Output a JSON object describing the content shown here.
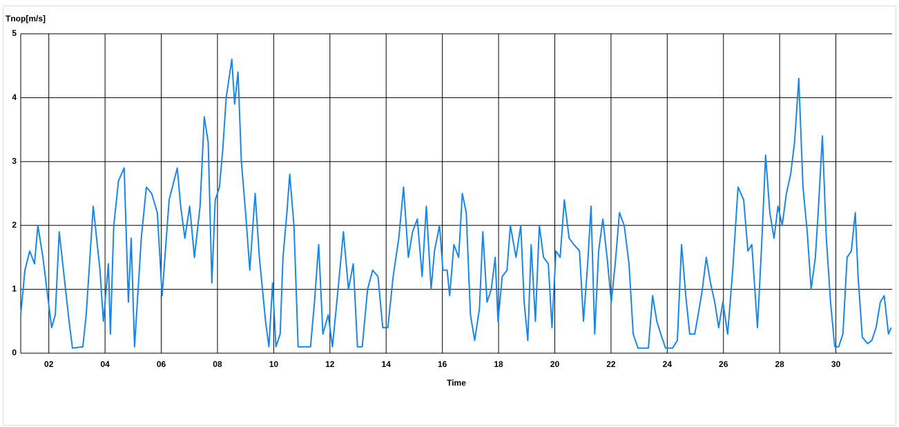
{
  "chart_data": {
    "type": "line",
    "y_label": "Tnop[m/s]",
    "x_label": "Time",
    "xlim": [
      1,
      32
    ],
    "xticks": [
      {
        "value": 2,
        "label": "02"
      },
      {
        "value": 4,
        "label": "04"
      },
      {
        "value": 6,
        "label": "06"
      },
      {
        "value": 8,
        "label": "08"
      },
      {
        "value": 10,
        "label": "10"
      },
      {
        "value": 12,
        "label": "12"
      },
      {
        "value": 14,
        "label": "14"
      },
      {
        "value": 16,
        "label": "16"
      },
      {
        "value": 18,
        "label": "18"
      },
      {
        "value": 20,
        "label": "20"
      },
      {
        "value": 22,
        "label": "22"
      },
      {
        "value": 24,
        "label": "24"
      },
      {
        "value": 26,
        "label": "26"
      },
      {
        "value": 28,
        "label": "28"
      },
      {
        "value": 30,
        "label": "30"
      }
    ],
    "ylim": [
      0,
      5
    ],
    "yticks": [
      0,
      1,
      2,
      3,
      4,
      5
    ],
    "grid": true,
    "x": [
      1.0,
      1.15,
      1.32,
      1.49,
      1.61,
      1.79,
      1.93,
      2.1,
      2.23,
      2.37,
      2.52,
      2.72,
      2.84,
      3.21,
      3.33,
      3.58,
      3.82,
      3.94,
      4.12,
      4.19,
      4.31,
      4.48,
      4.68,
      4.83,
      4.93,
      5.05,
      5.29,
      5.47,
      5.66,
      5.86,
      6.03,
      6.28,
      6.57,
      6.69,
      6.84,
      7.01,
      7.18,
      7.38,
      7.53,
      7.67,
      7.8,
      7.92,
      8.07,
      8.19,
      8.31,
      8.51,
      8.61,
      8.73,
      8.85,
      9.0,
      9.15,
      9.34,
      9.49,
      9.71,
      9.83,
      9.96,
      10.08,
      10.23,
      10.33,
      10.47,
      10.57,
      10.72,
      10.87,
      11.06,
      11.31,
      11.45,
      11.6,
      11.75,
      11.94,
      12.09,
      12.29,
      12.48,
      12.66,
      12.83,
      12.98,
      13.15,
      13.34,
      13.52,
      13.71,
      13.88,
      14.06,
      14.25,
      14.45,
      14.62,
      14.79,
      14.94,
      15.11,
      15.28,
      15.43,
      15.6,
      15.72,
      15.9,
      16.02,
      16.17,
      16.26,
      16.41,
      16.58,
      16.71,
      16.85,
      17.0,
      17.15,
      17.32,
      17.44,
      17.59,
      17.74,
      17.88,
      17.98,
      18.13,
      18.3,
      18.42,
      18.62,
      18.79,
      18.91,
      19.04,
      19.16,
      19.31,
      19.45,
      19.6,
      19.77,
      19.9,
      20.04,
      20.19,
      20.34,
      20.51,
      20.68,
      20.88,
      21.02,
      21.17,
      21.29,
      21.42,
      21.56,
      21.71,
      21.86,
      22.01,
      22.15,
      22.3,
      22.47,
      22.64,
      22.79,
      22.96,
      23.33,
      23.48,
      23.63,
      23.77,
      23.94,
      24.19,
      24.36,
      24.51,
      24.66,
      24.8,
      24.98,
      25.1,
      25.25,
      25.39,
      25.54,
      25.69,
      25.83,
      25.98,
      26.15,
      26.33,
      26.52,
      26.72,
      26.87,
      27.01,
      27.21,
      27.36,
      27.5,
      27.65,
      27.8,
      27.94,
      28.09,
      28.24,
      28.39,
      28.53,
      28.68,
      28.83,
      28.98,
      29.12,
      29.27,
      29.37,
      29.52,
      29.66,
      29.81,
      29.96,
      30.1,
      30.25,
      30.4,
      30.55,
      30.69,
      30.79,
      30.94,
      31.13,
      31.28,
      31.43,
      31.58,
      31.72,
      31.87,
      31.97
    ],
    "series": [
      {
        "name": "Tnop",
        "color": "#1a86e6",
        "values": [
          0.6,
          1.3,
          1.6,
          1.4,
          2.0,
          1.5,
          1.0,
          0.4,
          0.6,
          1.9,
          1.3,
          0.5,
          0.08,
          0.1,
          0.6,
          2.3,
          1.3,
          0.5,
          1.4,
          0.3,
          2.0,
          2.7,
          2.9,
          0.8,
          1.8,
          0.1,
          1.8,
          2.6,
          2.5,
          2.2,
          0.9,
          2.4,
          2.9,
          2.3,
          1.8,
          2.3,
          1.5,
          2.3,
          3.7,
          3.3,
          1.1,
          2.4,
          2.6,
          3.2,
          4.0,
          4.6,
          3.9,
          4.4,
          3.0,
          2.2,
          1.3,
          2.5,
          1.5,
          0.5,
          0.1,
          1.1,
          0.1,
          0.3,
          1.5,
          2.2,
          2.8,
          2.0,
          0.1,
          0.1,
          0.1,
          0.8,
          1.7,
          0.3,
          0.6,
          0.1,
          1.0,
          1.9,
          1.0,
          1.4,
          0.1,
          0.1,
          1.0,
          1.3,
          1.2,
          0.4,
          0.4,
          1.2,
          1.8,
          2.6,
          1.5,
          1.9,
          2.1,
          1.2,
          2.3,
          1.0,
          1.6,
          2.0,
          1.3,
          1.3,
          0.9,
          1.7,
          1.5,
          2.5,
          2.2,
          0.6,
          0.2,
          0.7,
          1.9,
          0.8,
          1.0,
          1.5,
          0.5,
          1.2,
          1.3,
          2.0,
          1.5,
          2.0,
          0.8,
          0.2,
          1.7,
          0.5,
          2.0,
          1.5,
          1.4,
          0.4,
          1.6,
          1.5,
          2.4,
          1.8,
          1.7,
          1.6,
          0.5,
          1.4,
          2.3,
          0.3,
          1.6,
          2.1,
          1.5,
          0.8,
          1.4,
          2.2,
          2.0,
          1.4,
          0.3,
          0.08,
          0.08,
          0.9,
          0.5,
          0.3,
          0.08,
          0.08,
          0.2,
          1.7,
          0.9,
          0.3,
          0.3,
          0.6,
          1.0,
          1.5,
          1.1,
          0.8,
          0.4,
          0.8,
          0.3,
          1.3,
          2.6,
          2.4,
          1.6,
          1.7,
          0.4,
          1.7,
          3.1,
          2.2,
          1.8,
          2.3,
          2.0,
          2.5,
          2.8,
          3.3,
          4.3,
          2.6,
          1.9,
          1.0,
          1.5,
          2.2,
          3.4,
          1.8,
          0.8,
          0.1,
          0.1,
          0.3,
          1.5,
          1.6,
          2.2,
          1.2,
          0.25,
          0.15,
          0.2,
          0.4,
          0.8,
          0.9,
          0.3,
          0.4
        ]
      }
    ]
  }
}
